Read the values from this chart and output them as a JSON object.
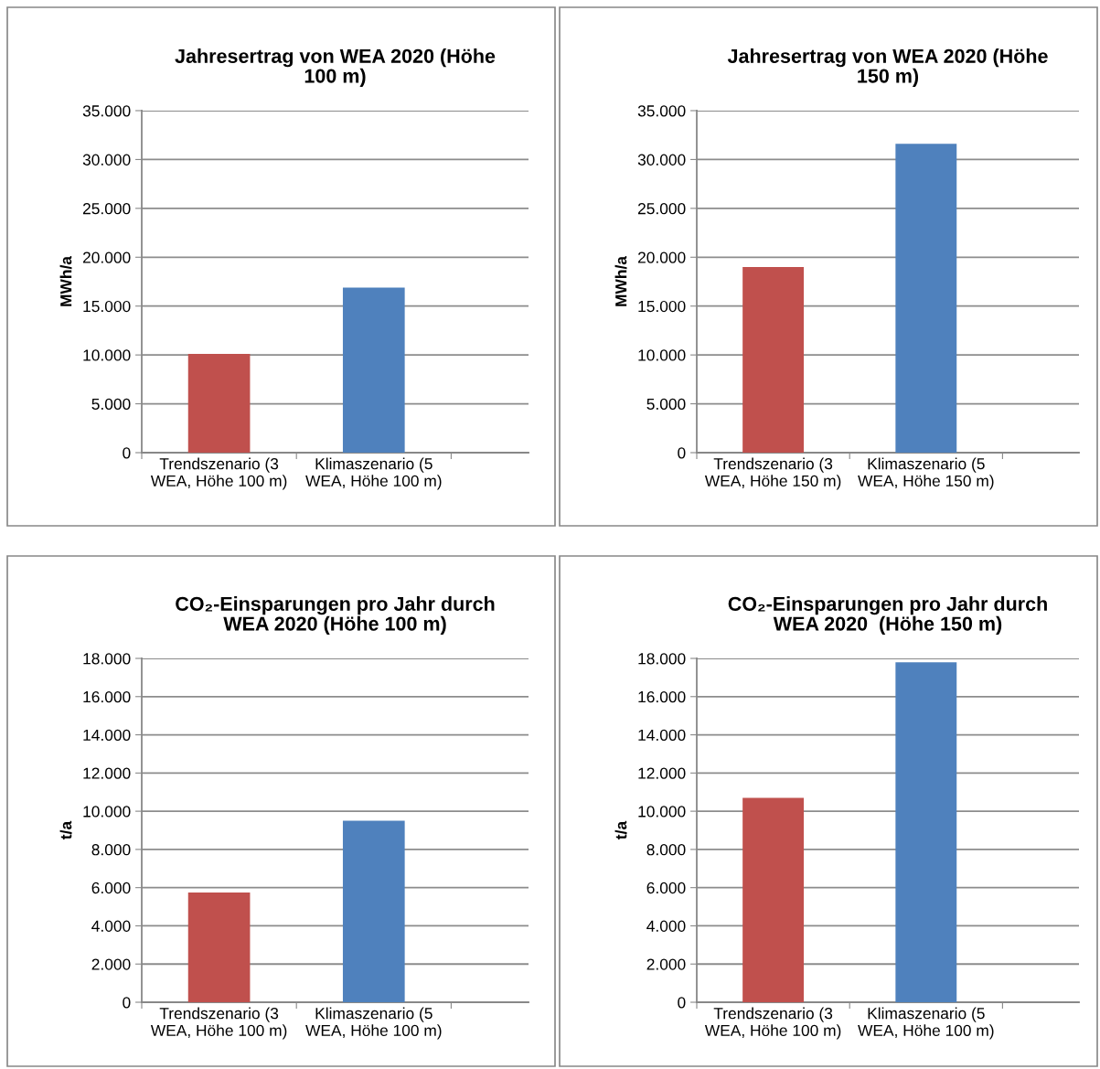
{
  "chart_data": [
    {
      "type": "bar",
      "title": "Jahresertrag von WEA 2020 (Höhe\n100 m)",
      "ylabel": "MWh/a",
      "categories": [
        "Trendszenario (3\nWEA, Höhe 100 m)",
        "Klimaszenario (5\nWEA, Höhe 100 m)"
      ],
      "values": [
        10100,
        16900
      ],
      "colors": [
        "#c0504d",
        "#4f81bd"
      ],
      "ylim": [
        0,
        35000
      ],
      "yticks": [
        {
          "value": 0,
          "label": "0"
        },
        {
          "value": 5000,
          "label": "5.000"
        },
        {
          "value": 10000,
          "label": "10.000"
        },
        {
          "value": 15000,
          "label": "15.000"
        },
        {
          "value": 20000,
          "label": "20.000"
        },
        {
          "value": 25000,
          "label": "25.000"
        },
        {
          "value": 30000,
          "label": "30.000"
        },
        {
          "value": 35000,
          "label": "35.000"
        }
      ],
      "grid": "y",
      "legend": false
    },
    {
      "type": "bar",
      "title": "Jahresertrag von WEA 2020 (Höhe\n150 m)",
      "ylabel": "MWh/a",
      "categories": [
        "Trendszenario (3\nWEA, Höhe 150 m)",
        "Klimaszenario (5\nWEA, Höhe 150 m)"
      ],
      "values": [
        19000,
        31600
      ],
      "colors": [
        "#c0504d",
        "#4f81bd"
      ],
      "ylim": [
        0,
        35000
      ],
      "yticks": [
        {
          "value": 0,
          "label": "0"
        },
        {
          "value": 5000,
          "label": "5.000"
        },
        {
          "value": 10000,
          "label": "10.000"
        },
        {
          "value": 15000,
          "label": "15.000"
        },
        {
          "value": 20000,
          "label": "20.000"
        },
        {
          "value": 25000,
          "label": "25.000"
        },
        {
          "value": 30000,
          "label": "30.000"
        },
        {
          "value": 35000,
          "label": "35.000"
        }
      ],
      "grid": "y",
      "legend": false
    },
    {
      "type": "bar",
      "title": "CO₂-Einsparungen pro Jahr durch\nWEA 2020 (Höhe 100 m)",
      "ylabel": "t/a",
      "categories": [
        "Trendszenario (3\nWEA, Höhe 100 m)",
        "Klimaszenario (5\nWEA, Höhe 100 m)"
      ],
      "values": [
        5750,
        9500
      ],
      "colors": [
        "#c0504d",
        "#4f81bd"
      ],
      "ylim": [
        0,
        18000
      ],
      "yticks": [
        {
          "value": 0,
          "label": "0"
        },
        {
          "value": 2000,
          "label": "2.000"
        },
        {
          "value": 4000,
          "label": "4.000"
        },
        {
          "value": 6000,
          "label": "6.000"
        },
        {
          "value": 8000,
          "label": "8.000"
        },
        {
          "value": 10000,
          "label": "10.000"
        },
        {
          "value": 12000,
          "label": "12.000"
        },
        {
          "value": 14000,
          "label": "14.000"
        },
        {
          "value": 16000,
          "label": "16.000"
        },
        {
          "value": 18000,
          "label": "18.000"
        }
      ],
      "grid": "y",
      "legend": false
    },
    {
      "type": "bar",
      "title": "CO₂-Einsparungen pro Jahr durch\nWEA 2020  (Höhe 150 m)",
      "ylabel": "t/a",
      "categories": [
        "Trendszenario (3\nWEA, Höhe 100 m)",
        "Klimaszenario (5\nWEA, Höhe 100 m)"
      ],
      "values": [
        10700,
        17800
      ],
      "colors": [
        "#c0504d",
        "#4f81bd"
      ],
      "ylim": [
        0,
        18000
      ],
      "yticks": [
        {
          "value": 0,
          "label": "0"
        },
        {
          "value": 2000,
          "label": "2.000"
        },
        {
          "value": 4000,
          "label": "4.000"
        },
        {
          "value": 6000,
          "label": "6.000"
        },
        {
          "value": 8000,
          "label": "8.000"
        },
        {
          "value": 10000,
          "label": "10.000"
        },
        {
          "value": 12000,
          "label": "12.000"
        },
        {
          "value": 14000,
          "label": "14.000"
        },
        {
          "value": 16000,
          "label": "16.000"
        },
        {
          "value": 18000,
          "label": "18.000"
        }
      ],
      "grid": "y",
      "legend": false
    }
  ]
}
